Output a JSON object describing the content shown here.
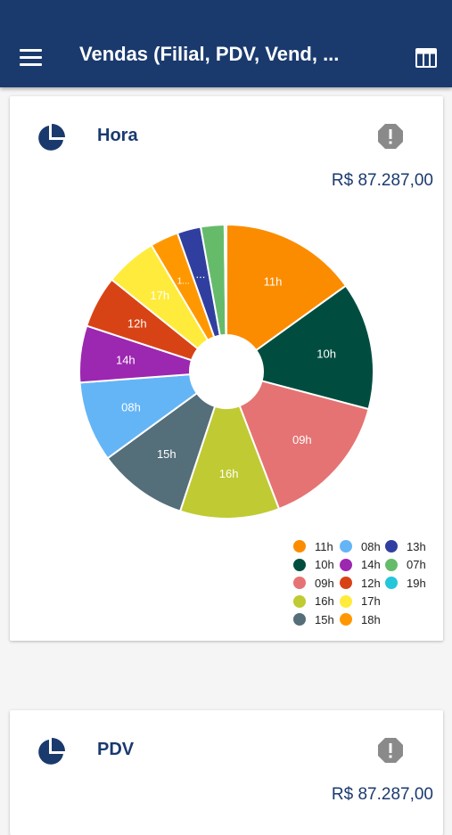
{
  "app_bar": {
    "title": "Vendas (Filial, PDV, Vend, ...",
    "menu_icon": "menu-icon",
    "table_icon": "table-view-icon",
    "background": "#1a3a6e"
  },
  "cards": [
    {
      "title": "Hora",
      "total": "R$ 87.287,00",
      "icon": "pie-chart-icon",
      "alert_icon": "alert-icon"
    },
    {
      "title": "PDV",
      "total": "R$ 87.287,00",
      "icon": "pie-chart-icon",
      "alert_icon": "alert-icon"
    }
  ],
  "chart_data": {
    "type": "pie",
    "variant": "donut",
    "categories": [
      "11h",
      "10h",
      "09h",
      "16h",
      "15h",
      "08h",
      "14h",
      "12h",
      "17h",
      "18h",
      "13h",
      "07h",
      "19h"
    ],
    "values": [
      14.5,
      13.5,
      14.5,
      10.5,
      9.5,
      8.5,
      6.0,
      5.5,
      5.5,
      3.0,
      2.5,
      2.5,
      0.2
    ],
    "colors": [
      "#fb8c00",
      "#004d40",
      "#e57373",
      "#c0ca33",
      "#546e7a",
      "#64b5f6",
      "#9c27b0",
      "#d84315",
      "#ffeb3b",
      "#ff9800",
      "#303f9f",
      "#66bb6a",
      "#26c6da"
    ],
    "slice_labels": [
      "11h",
      "10h",
      "09h",
      "16h",
      "15h",
      "08h",
      "14h",
      "12h",
      "17h",
      "1...",
      "...",
      "",
      ""
    ],
    "legend": {
      "placement": "bottom-right",
      "columns": [
        [
          "11h",
          "10h",
          "09h",
          "16h",
          "15h"
        ],
        [
          "08h",
          "14h",
          "12h",
          "17h",
          "18h"
        ],
        [
          "13h",
          "07h",
          "19h"
        ]
      ]
    }
  }
}
